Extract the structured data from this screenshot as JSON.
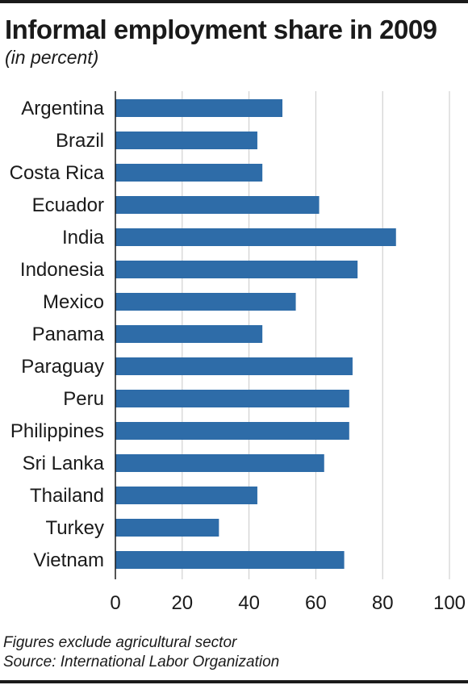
{
  "chart_data": {
    "type": "bar",
    "orientation": "horizontal",
    "title": "Informal employment share in 2009",
    "subtitle": "(in percent)",
    "categories": [
      "Argentina",
      "Brazil",
      "Costa Rica",
      "Ecuador",
      "India",
      "Indonesia",
      "Mexico",
      "Panama",
      "Paraguay",
      "Peru",
      "Philippines",
      "Sri Lanka",
      "Thailand",
      "Turkey",
      "Vietnam"
    ],
    "values": [
      50,
      42.5,
      44,
      61,
      84,
      72.5,
      54,
      44,
      71,
      70,
      70,
      62.5,
      42.5,
      31,
      68.5
    ],
    "xlim": [
      0,
      100
    ],
    "xticks": [
      0,
      20,
      40,
      60,
      80,
      100
    ],
    "grid": true,
    "bar_color": "#2e6ca8",
    "grid_color": "#c8c8c8"
  },
  "notes": {
    "line1": "Figures exclude agricultural sector",
    "line2": "Source: International Labor Organization"
  }
}
